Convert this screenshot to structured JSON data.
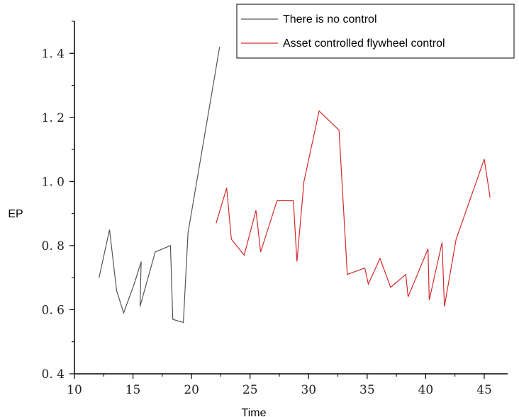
{
  "chart_data": {
    "type": "line",
    "xlabel": "Time",
    "ylabel": "EP",
    "xlim": [
      10,
      47
    ],
    "ylim": [
      0.4,
      1.5
    ],
    "x_ticks": [
      10,
      15,
      20,
      25,
      30,
      35,
      40,
      45
    ],
    "y_ticks": [
      0.4,
      0.6,
      0.8,
      1.0,
      1.2,
      1.4
    ],
    "x_tick_labels": [
      "10",
      "15",
      "20",
      "25",
      "30",
      "35",
      "40",
      "45"
    ],
    "y_tick_labels": [
      "0. 4",
      "0. 6",
      "0. 8",
      "1. 0",
      "1. 2",
      "1. 4"
    ],
    "grid": false,
    "legend_position": "top-right",
    "series": [
      {
        "name": "There is no control",
        "color": "#555555",
        "x": [
          12.1,
          13.0,
          13.6,
          14.2,
          15.1,
          15.7,
          15.6,
          16.9,
          18.2,
          18.4,
          19.3,
          19.7,
          22.4
        ],
        "y": [
          0.7,
          0.85,
          0.66,
          0.59,
          0.68,
          0.75,
          0.61,
          0.78,
          0.8,
          0.57,
          0.56,
          0.84,
          1.42
        ]
      },
      {
        "name": "Asset controlled flywheel control",
        "color": "#d22a2a",
        "x": [
          22.1,
          23.0,
          23.4,
          24.5,
          25.5,
          25.9,
          27.3,
          28.4,
          28.7,
          29.0,
          29.6,
          30.9,
          32.6,
          33.3,
          34.8,
          35.1,
          36.1,
          37.0,
          38.3,
          38.5,
          40.2,
          40.3,
          41.4,
          41.6,
          42.6,
          45.0,
          45.5
        ],
        "y": [
          0.87,
          0.98,
          0.82,
          0.77,
          0.91,
          0.78,
          0.94,
          0.94,
          0.94,
          0.75,
          1.0,
          1.22,
          1.16,
          0.71,
          0.73,
          0.68,
          0.76,
          0.67,
          0.71,
          0.64,
          0.79,
          0.63,
          0.81,
          0.61,
          0.82,
          1.07,
          0.95
        ]
      }
    ]
  }
}
